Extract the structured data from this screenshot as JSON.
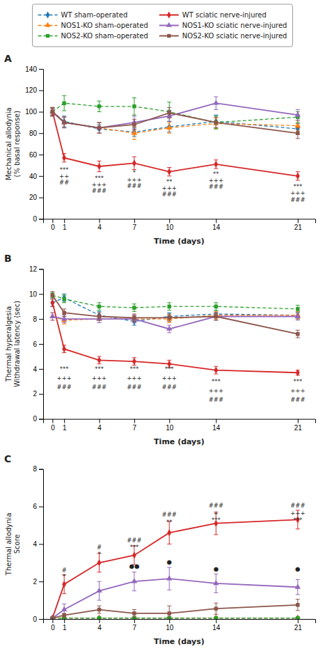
{
  "chart_data": [
    {
      "type": "line",
      "title": "A",
      "legend": "top",
      "grid": false,
      "x": [
        0,
        1,
        4,
        7,
        10,
        14,
        21
      ],
      "xlim": [
        -0.8,
        22.5
      ],
      "xticks": [
        0,
        1,
        4,
        7,
        10,
        14,
        21
      ],
      "xlabel": "Time (days)",
      "ylabel": "Mechanical allodynia\n(% basal response)",
      "ylim": [
        0,
        140
      ],
      "yticks": [
        0,
        20,
        40,
        60,
        80,
        100,
        120,
        140
      ],
      "series": [
        {
          "name": "WT sham-operated",
          "marker": "diamond",
          "line_style": "dashed",
          "values": [
            100,
            91,
            84,
            81,
            86,
            91,
            84
          ],
          "errors": [
            3,
            5,
            4,
            4,
            5,
            6,
            5
          ]
        },
        {
          "name": "NOS1-KO sham-operated",
          "marker": "triangle",
          "line_style": "dashed",
          "values": [
            100,
            90,
            85,
            80,
            85,
            89,
            87
          ],
          "errors": [
            4,
            5,
            5,
            6,
            5,
            5,
            5
          ]
        },
        {
          "name": "NOS2-KO sham-operated",
          "marker": "square",
          "line_style": "dashed",
          "values": [
            100,
            108,
            105,
            105,
            100,
            90,
            95
          ],
          "errors": [
            4,
            7,
            5,
            8,
            9,
            6,
            5
          ]
        },
        {
          "name": "WT sciatic nerve-injured",
          "marker": "diamond",
          "line_style": "solid",
          "values": [
            100,
            57,
            49,
            52,
            44,
            51,
            40
          ],
          "errors": [
            3,
            4,
            5,
            6,
            4,
            4,
            4
          ]
        },
        {
          "name": "NOS1-KO sciatic nerve-injured",
          "marker": "triangle",
          "line_style": "solid",
          "values": [
            100,
            90,
            85,
            90,
            96,
            108,
            97
          ],
          "errors": [
            4,
            5,
            5,
            6,
            5,
            6,
            5
          ]
        },
        {
          "name": "NOS2-KO sciatic nerve-injured",
          "marker": "square",
          "line_style": "solid",
          "values": [
            100,
            90,
            85,
            88,
            99,
            90,
            80
          ],
          "errors": [
            4,
            5,
            5,
            5,
            5,
            5,
            5
          ]
        }
      ],
      "annotations": [
        {
          "x": 1,
          "y": 44,
          "text": "***"
        },
        {
          "x": 1,
          "y": 38,
          "text": "++"
        },
        {
          "x": 1,
          "y": 32,
          "text": "##"
        },
        {
          "x": 4,
          "y": 36,
          "text": "***"
        },
        {
          "x": 4,
          "y": 30,
          "text": "+++"
        },
        {
          "x": 4,
          "y": 24,
          "text": "###"
        },
        {
          "x": 7,
          "y": 41,
          "text": "*"
        },
        {
          "x": 7,
          "y": 35,
          "text": "+++"
        },
        {
          "x": 7,
          "y": 29,
          "text": "###"
        },
        {
          "x": 10,
          "y": 33,
          "text": "**"
        },
        {
          "x": 10,
          "y": 27,
          "text": "+++"
        },
        {
          "x": 10,
          "y": 21,
          "text": "###"
        },
        {
          "x": 14,
          "y": 40,
          "text": "**"
        },
        {
          "x": 14,
          "y": 34,
          "text": "+++"
        },
        {
          "x": 14,
          "y": 28,
          "text": "###"
        },
        {
          "x": 21,
          "y": 28,
          "text": "***"
        },
        {
          "x": 21,
          "y": 22,
          "text": "+++"
        },
        {
          "x": 21,
          "y": 16,
          "text": "###"
        }
      ]
    },
    {
      "type": "line",
      "title": "B",
      "grid": false,
      "x": [
        0,
        1,
        4,
        7,
        10,
        14,
        21
      ],
      "xlim": [
        -0.8,
        22.5
      ],
      "xticks": [
        0,
        1,
        4,
        7,
        10,
        14,
        21
      ],
      "xlabel": "Time (days)",
      "ylabel": "Thermal hyperalgesia\nWithdrawal latency (sec)",
      "ylim": [
        0,
        12
      ],
      "yticks": [
        0,
        2,
        4,
        6,
        8,
        10,
        12
      ],
      "series": [
        {
          "marker": "diamond",
          "line_style": "dashed",
          "values": [
            9.3,
            9.7,
            8.3,
            7.8,
            8.2,
            8.4,
            8.3
          ],
          "errors": [
            0.3,
            0.3,
            0.3,
            0.3,
            0.3,
            0.3,
            0.3
          ]
        },
        {
          "marker": "triangle",
          "line_style": "dashed",
          "values": [
            8.2,
            7.9,
            8.0,
            8.0,
            8.0,
            8.3,
            8.3
          ],
          "errors": [
            0.3,
            0.3,
            0.3,
            0.3,
            0.3,
            0.3,
            0.3
          ]
        },
        {
          "marker": "square",
          "line_style": "dashed",
          "values": [
            9.9,
            9.6,
            9.0,
            8.9,
            9.0,
            9.0,
            8.8
          ],
          "errors": [
            0.2,
            0.3,
            0.3,
            0.3,
            0.3,
            0.3,
            0.3
          ]
        },
        {
          "marker": "diamond",
          "line_style": "solid",
          "values": [
            9.3,
            5.6,
            4.7,
            4.6,
            4.4,
            3.9,
            3.7
          ],
          "errors": [
            0.3,
            0.3,
            0.3,
            0.3,
            0.3,
            0.3,
            0.2
          ]
        },
        {
          "marker": "triangle",
          "line_style": "solid",
          "values": [
            8.2,
            8.0,
            8.0,
            8.0,
            7.2,
            8.2,
            8.2
          ],
          "errors": [
            0.3,
            0.3,
            0.3,
            0.3,
            0.3,
            0.3,
            0.3
          ]
        },
        {
          "marker": "square",
          "line_style": "solid",
          "values": [
            9.9,
            8.5,
            8.2,
            8.1,
            8.1,
            8.2,
            6.8
          ],
          "errors": [
            0.3,
            0.3,
            0.3,
            0.3,
            0.3,
            0.3,
            0.3
          ]
        }
      ],
      "annotations": [
        {
          "x": 1,
          "y": 3.8,
          "text": "***"
        },
        {
          "x": 1,
          "y": 3.1,
          "text": "+++"
        },
        {
          "x": 1,
          "y": 2.4,
          "text": "###"
        },
        {
          "x": 4,
          "y": 3.8,
          "text": "***"
        },
        {
          "x": 4,
          "y": 3.1,
          "text": "+++"
        },
        {
          "x": 4,
          "y": 2.4,
          "text": "###"
        },
        {
          "x": 7,
          "y": 3.8,
          "text": "***"
        },
        {
          "x": 7,
          "y": 3.1,
          "text": "+++"
        },
        {
          "x": 7,
          "y": 2.4,
          "text": "###"
        },
        {
          "x": 10,
          "y": 3.8,
          "text": "***"
        },
        {
          "x": 10,
          "y": 3.1,
          "text": "+++"
        },
        {
          "x": 10,
          "y": 2.4,
          "text": "###"
        },
        {
          "x": 14,
          "y": 2.8,
          "text": "***"
        },
        {
          "x": 14,
          "y": 2.1,
          "text": "+++"
        },
        {
          "x": 14,
          "y": 1.4,
          "text": "###"
        },
        {
          "x": 21,
          "y": 2.8,
          "text": "***"
        },
        {
          "x": 21,
          "y": 2.1,
          "text": "+++"
        },
        {
          "x": 21,
          "y": 1.4,
          "text": "###"
        }
      ]
    },
    {
      "type": "line",
      "title": "C",
      "grid": false,
      "x": [
        0,
        1,
        4,
        7,
        10,
        14,
        21
      ],
      "xlim": [
        -0.8,
        22.5
      ],
      "xticks": [
        0,
        1,
        4,
        7,
        10,
        14,
        21
      ],
      "xlabel": "Time (days)",
      "ylabel": "Thermal allodynia\nScore",
      "ylim": [
        0,
        8
      ],
      "yticks": [
        0,
        2,
        4,
        6,
        8
      ],
      "series": [
        {
          "marker": "diamond",
          "line_style": "dashed",
          "values": [
            0.05,
            0.05,
            0.05,
            0.05,
            0.05,
            0.05,
            0.05
          ],
          "errors": [
            0.03,
            0.03,
            0.03,
            0.03,
            0.03,
            0.03,
            0.03
          ]
        },
        {
          "marker": "triangle",
          "line_style": "dashed",
          "values": [
            0.05,
            0.05,
            0.05,
            0.05,
            0.05,
            0.05,
            0.05
          ],
          "errors": [
            0.03,
            0.03,
            0.03,
            0.03,
            0.03,
            0.03,
            0.03
          ]
        },
        {
          "marker": "square",
          "line_style": "dashed",
          "values": [
            0.05,
            0.05,
            0.05,
            0.05,
            0.05,
            0.05,
            0.05
          ],
          "errors": [
            0.03,
            0.03,
            0.03,
            0.03,
            0.03,
            0.03,
            0.03
          ]
        },
        {
          "marker": "diamond",
          "line_style": "solid",
          "values": [
            0.05,
            1.85,
            3.0,
            3.4,
            4.6,
            5.1,
            5.3
          ],
          "errors": [
            0.03,
            0.5,
            0.5,
            0.5,
            0.6,
            0.6,
            0.5
          ]
        },
        {
          "marker": "triangle",
          "line_style": "solid",
          "values": [
            0.05,
            0.5,
            1.5,
            2.0,
            2.15,
            1.9,
            1.7
          ],
          "errors": [
            0.03,
            0.3,
            0.5,
            0.5,
            0.6,
            0.5,
            0.4
          ]
        },
        {
          "marker": "square",
          "line_style": "solid",
          "values": [
            0.05,
            0.2,
            0.5,
            0.3,
            0.3,
            0.55,
            0.75
          ],
          "errors": [
            0.03,
            0.1,
            0.2,
            0.2,
            0.4,
            0.3,
            0.3
          ]
        }
      ],
      "annotations": [
        {
          "x": 1,
          "y": 2.5,
          "text": "#"
        },
        {
          "x": 1,
          "y": 2.15,
          "text": "*"
        },
        {
          "x": 4,
          "y": 3.7,
          "text": "#"
        },
        {
          "x": 4,
          "y": 3.35,
          "text": "*"
        },
        {
          "x": 7,
          "y": 4.1,
          "text": "###"
        },
        {
          "x": 7,
          "y": 3.7,
          "text": "***"
        },
        {
          "x": 7,
          "y": 2.7,
          "text": "●●"
        },
        {
          "x": 10,
          "y": 5.45,
          "text": "###"
        },
        {
          "x": 10,
          "y": 5.05,
          "text": "**"
        },
        {
          "x": 10,
          "y": 2.95,
          "text": "●"
        },
        {
          "x": 14,
          "y": 5.95,
          "text": "###"
        },
        {
          "x": 14,
          "y": 5.55,
          "text": "+"
        },
        {
          "x": 14,
          "y": 5.15,
          "text": "***"
        },
        {
          "x": 14,
          "y": 2.55,
          "text": "●"
        },
        {
          "x": 21,
          "y": 5.95,
          "text": "###"
        },
        {
          "x": 21,
          "y": 5.55,
          "text": "+++"
        },
        {
          "x": 21,
          "y": 5.15,
          "text": "***"
        },
        {
          "x": 21,
          "y": 2.55,
          "text": "●"
        }
      ]
    }
  ]
}
